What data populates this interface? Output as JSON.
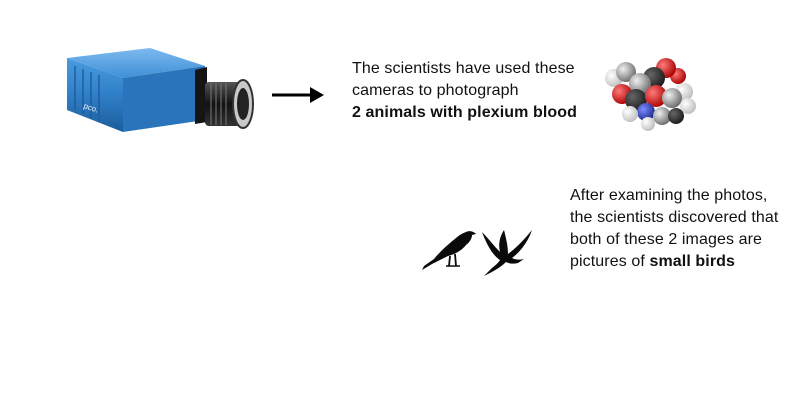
{
  "camera": {
    "brand_text": "pco."
  },
  "caption1": {
    "plain": "The scientists have used these cameras to photograph",
    "bold": "2 animals with plexium blood"
  },
  "caption2": {
    "plain": "After examining the photos, the scientists discovered that both of these 2 images are pictures of",
    "bold": "small birds"
  },
  "colors": {
    "camera_blue": "#2f7fc8",
    "camera_dark": "#1a1a1a",
    "text": "#111111",
    "bird": "#0a0a0a",
    "atom_red": "#d11a1a",
    "atom_grey": "#b8b8b8",
    "atom_white": "#f2f2f2",
    "atom_blue": "#2a3fb8"
  },
  "icons": [
    "camera-image",
    "arrow-right-icon",
    "molecule-image",
    "perched-bird-icon",
    "flying-bird-icon"
  ]
}
